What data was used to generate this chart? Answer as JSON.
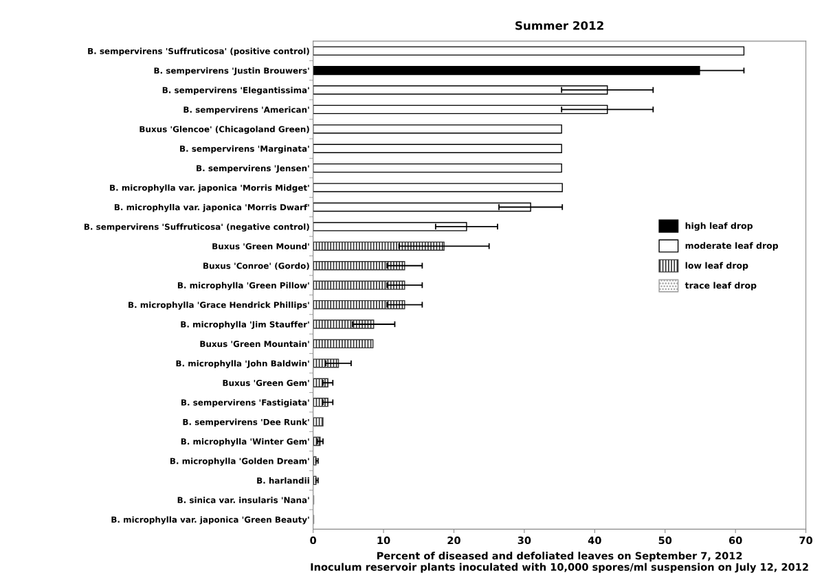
{
  "chart_data": {
    "type": "bar",
    "orientation": "horizontal",
    "title": "Summer 2012",
    "xlabel": "Percent of diseased and defoliated leaves on September 7, 2012\nInoculum reservoir plants inoculated with 10,000 spores/ml suspension on July 12, 2012",
    "categories": [
      "B. sempervirens 'Suffruticosa' (positive control)",
      "B. sempervirens 'Justin Brouwers'",
      "B. sempervirens 'Elegantissima'",
      "B. sempervirens 'American'",
      "Buxus 'Glencoe' (Chicagoland Green)",
      "B. sempervirens 'Marginata'",
      "B. sempervirens 'Jensen'",
      "B. microphylla var. japonica 'Morris Midget'",
      "B. microphylla var. japonica 'Morris Dwarf'",
      "B. sempervirens 'Suffruticosa' (negative control)",
      "Buxus 'Green Mound'",
      "Buxus 'Conroe' (Gordo)",
      "B. microphylla 'Green Pillow'",
      "B. microphylla 'Grace Hendrick Phillips'",
      "B. microphylla 'Jim Stauffer'",
      "Buxus 'Green Mountain'",
      "B. microphylla 'John Baldwin'",
      "Buxus 'Green Gem'",
      "B. sempervirens 'Fastigiata'",
      "B. sempervirens 'Dee Runk'",
      "B. microphylla 'Winter Gem'",
      "B. microphylla 'Golden Dream'",
      "B. harlandii",
      "B. sinica var. insularis 'Nana'",
      "B. microphylla var. japonica 'Green Beauty'"
    ],
    "series": [
      {
        "name": "high leaf drop",
        "color": "#000000",
        "values": [
          null,
          54.9,
          null,
          null,
          null,
          null,
          null,
          null,
          null,
          null,
          null,
          null,
          null,
          null,
          null,
          null,
          null,
          null,
          null,
          null,
          null,
          null,
          null,
          null,
          null
        ],
        "errors": [
          null,
          6.3,
          null,
          null,
          null,
          null,
          null,
          null,
          null,
          null,
          null,
          null,
          null,
          null,
          null,
          null,
          null,
          null,
          null,
          null,
          null,
          null,
          null,
          null,
          null
        ]
      },
      {
        "name": "moderate leaf drop",
        "color": "#ffffff",
        "values": [
          61.2,
          null,
          41.8,
          41.8,
          35.3,
          35.3,
          35.3,
          35.4,
          30.9,
          21.8,
          null,
          null,
          null,
          null,
          null,
          null,
          null,
          null,
          null,
          null,
          null,
          null,
          null,
          null,
          null
        ],
        "errors": [
          null,
          null,
          6.5,
          6.5,
          null,
          null,
          null,
          null,
          4.5,
          4.4,
          null,
          null,
          null,
          null,
          null,
          null,
          null,
          null,
          null,
          null,
          null,
          null,
          null,
          null,
          null
        ]
      },
      {
        "name": "low leaf drop",
        "color": "#333333",
        "values": [
          null,
          null,
          null,
          null,
          null,
          null,
          null,
          null,
          null,
          null,
          18.6,
          13.0,
          13.0,
          13.0,
          8.6,
          8.5,
          3.6,
          2.1,
          2.1,
          1.4,
          1.0,
          0.4,
          0.4,
          null,
          null
        ],
        "errors": [
          null,
          null,
          null,
          null,
          null,
          null,
          null,
          null,
          null,
          null,
          6.4,
          2.5,
          2.5,
          2.5,
          3.0,
          null,
          1.8,
          0.7,
          0.7,
          null,
          0.4,
          [
            0.4,
            0.7
          ],
          [
            0.4,
            0.7
          ],
          null,
          null
        ]
      },
      {
        "name": "trace leaf drop",
        "color": "#999999",
        "values": [
          null,
          null,
          null,
          null,
          null,
          null,
          null,
          null,
          null,
          null,
          null,
          null,
          null,
          null,
          null,
          null,
          null,
          null,
          null,
          null,
          null,
          null,
          null,
          0.1,
          0.1
        ]
      }
    ],
    "xlim": [
      0,
      70
    ],
    "xticks": [
      0,
      10,
      20,
      30,
      40,
      50,
      60,
      70
    ],
    "legend": "right"
  }
}
